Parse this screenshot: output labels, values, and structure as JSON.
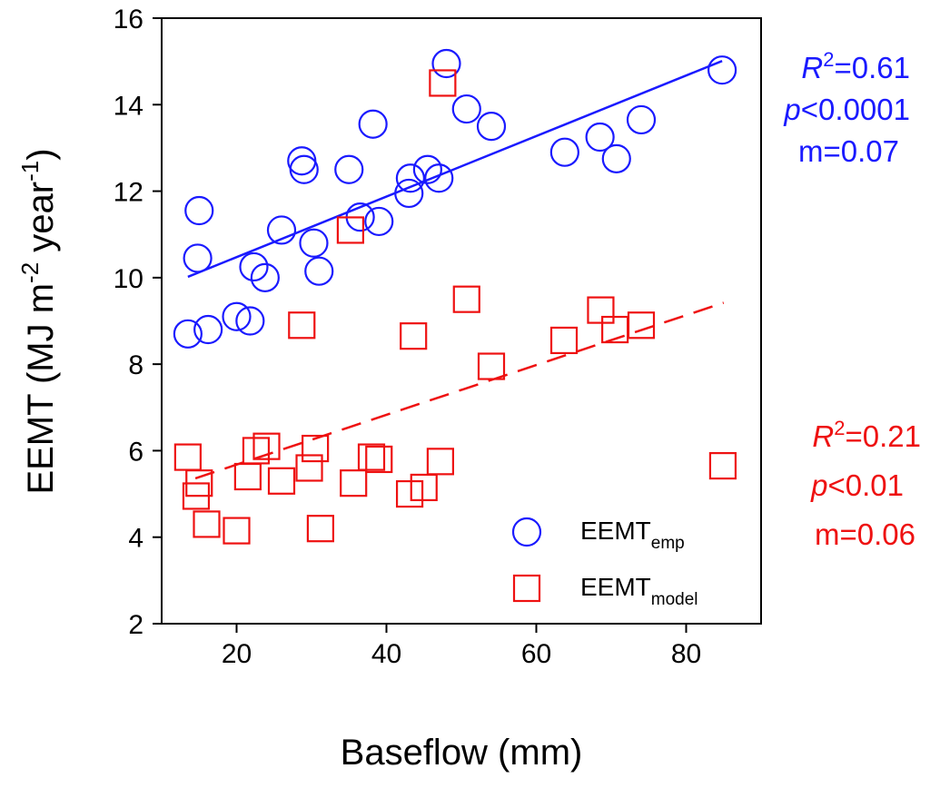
{
  "chart_data": {
    "type": "scatter",
    "xlabel": "Baseflow (mm)",
    "ylabel": {
      "main": "EEMT (MJ m",
      "exp1": "-2",
      "mid": " year",
      "exp2": "-1",
      "close": ")"
    },
    "xlim": [
      10,
      90
    ],
    "ylim": [
      2,
      16
    ],
    "xticks": [
      "20",
      "40",
      "60",
      "80"
    ],
    "yticks": [
      "2",
      "4",
      "6",
      "8",
      "10",
      "12",
      "14",
      "16"
    ],
    "grid": false,
    "legend_position": "bottom-right",
    "series": [
      {
        "name": "EEMT",
        "name_sub": "emp",
        "marker": "circle",
        "color": "#1a1aff",
        "points": [
          [
            13.5,
            8.7
          ],
          [
            14.8,
            10.45
          ],
          [
            15.0,
            11.55
          ],
          [
            16.2,
            8.8
          ],
          [
            20.0,
            9.1
          ],
          [
            21.8,
            9.0
          ],
          [
            22.3,
            10.25
          ],
          [
            23.8,
            10.0
          ],
          [
            26.0,
            11.1
          ],
          [
            28.7,
            12.7
          ],
          [
            29.0,
            12.5
          ],
          [
            30.3,
            10.8
          ],
          [
            31.0,
            10.15
          ],
          [
            35.0,
            12.5
          ],
          [
            36.5,
            11.4
          ],
          [
            38.2,
            13.55
          ],
          [
            39.0,
            11.3
          ],
          [
            43.0,
            11.95
          ],
          [
            43.2,
            12.3
          ],
          [
            45.5,
            12.5
          ],
          [
            47.0,
            12.3
          ],
          [
            48.0,
            14.95
          ],
          [
            50.7,
            13.9
          ],
          [
            54.0,
            13.5
          ],
          [
            63.8,
            12.9
          ],
          [
            68.5,
            13.25
          ],
          [
            70.7,
            12.75
          ],
          [
            74.0,
            13.65
          ],
          [
            84.8,
            14.8
          ]
        ],
        "fit": {
          "x": [
            13.5,
            84.8
          ],
          "y": [
            10.02,
            15.01
          ],
          "style": "solid"
        }
      },
      {
        "name": "EEMT",
        "name_sub": "model",
        "marker": "square",
        "color": "#ee1111",
        "points": [
          [
            13.5,
            5.85
          ],
          [
            14.6,
            4.95
          ],
          [
            15.0,
            5.25
          ],
          [
            16.0,
            4.3
          ],
          [
            20.0,
            4.15
          ],
          [
            21.5,
            5.4
          ],
          [
            22.6,
            6.0
          ],
          [
            24.0,
            6.1
          ],
          [
            26.0,
            5.3
          ],
          [
            28.7,
            8.9
          ],
          [
            29.7,
            5.6
          ],
          [
            30.5,
            6.05
          ],
          [
            31.2,
            4.2
          ],
          [
            35.2,
            11.1
          ],
          [
            35.6,
            5.25
          ],
          [
            38.0,
            5.85
          ],
          [
            39.0,
            5.8
          ],
          [
            43.1,
            5.0
          ],
          [
            43.6,
            8.65
          ],
          [
            45.0,
            5.15
          ],
          [
            47.2,
            5.75
          ],
          [
            47.5,
            14.5
          ],
          [
            50.7,
            9.5
          ],
          [
            54.0,
            7.95
          ],
          [
            63.7,
            8.55
          ],
          [
            68.6,
            9.25
          ],
          [
            70.5,
            8.8
          ],
          [
            74.0,
            8.9
          ],
          [
            84.9,
            5.65
          ]
        ],
        "fit": {
          "x": [
            14.5,
            85.0
          ],
          "y": [
            5.36,
            9.42
          ],
          "style": "dashed"
        }
      }
    ],
    "annotations": [
      {
        "series": "emp",
        "r2_label": "R",
        "r2_exp": "2",
        "r2_value": "=0.61",
        "p_label": "p",
        "p_value": "<0.0001",
        "m_value": "m=0.07",
        "color": "#1a1aff"
      },
      {
        "series": "model",
        "r2_label": "R",
        "r2_exp": "2",
        "r2_value": "=0.21",
        "p_label": "p",
        "p_value": "<0.01",
        "m_value": "m=0.06",
        "color": "#ee1111"
      }
    ]
  }
}
